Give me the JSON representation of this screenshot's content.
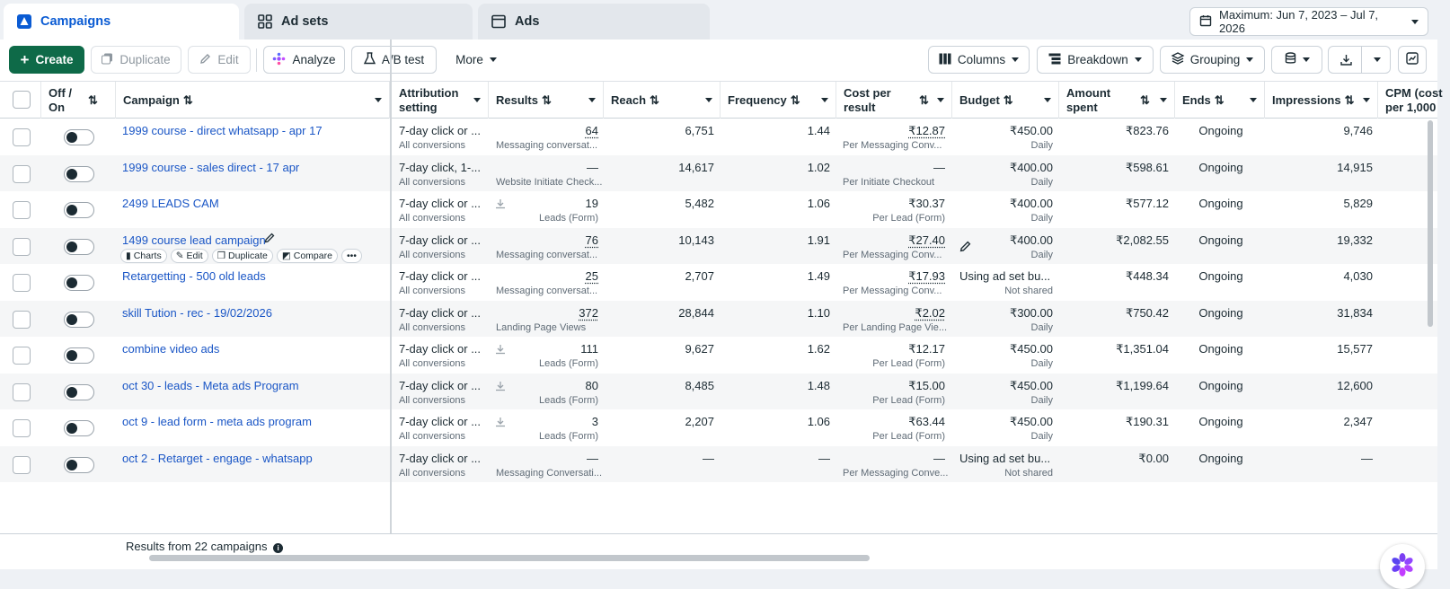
{
  "tabs": [
    {
      "label": "Campaigns",
      "icon": "campaign-flag-icon"
    },
    {
      "label": "Ad sets",
      "icon": "grid-icon"
    },
    {
      "label": "Ads",
      "icon": "browser-window-icon"
    }
  ],
  "date_range": {
    "label": "Maximum: Jun 7, 2023 – Jul 7, 2026",
    "icon": "calendar-icon"
  },
  "toolbar": {
    "create": "Create",
    "duplicate": "Duplicate",
    "edit": "Edit",
    "analyze": "Analyze",
    "ab_test": "A/B test",
    "more": "More",
    "columns": "Columns",
    "breakdown": "Breakdown",
    "grouping": "Grouping"
  },
  "columns": {
    "off_on": "Off / On",
    "campaign": "Campaign",
    "attribution": "Attribution setting",
    "results": "Results",
    "reach": "Reach",
    "frequency": "Frequency",
    "cost_per_result": "Cost per result",
    "budget": "Budget",
    "amount_spent": "Amount spent",
    "ends": "Ends",
    "impressions": "Impressions",
    "cpm": "CPM (cost per 1,000"
  },
  "hover_actions": {
    "charts": "Charts",
    "edit": "Edit",
    "duplicate": "Duplicate",
    "compare": "Compare",
    "more": "•••"
  },
  "rows": [
    {
      "campaign": "1999 course - direct whatsapp - apr 17",
      "attribution": "7-day click or ...",
      "attribution_sub": "All conversions",
      "results": "64",
      "results_sub": "Messaging conversat...",
      "reach": "6,751",
      "frequency": "1.44",
      "cpr": "₹12.87",
      "cpr_sub": "Per Messaging Conv...",
      "budget": "₹450.00",
      "budget_sub": "Daily",
      "spent": "₹823.76",
      "ends": "Ongoing",
      "impressions": "9,746"
    },
    {
      "campaign": "1999 course - sales direct - 17 apr",
      "attribution": "7-day click, 1-...",
      "attribution_sub": "All conversions",
      "results": "—",
      "results_sub": "Website Initiate Check...",
      "reach": "14,617",
      "frequency": "1.02",
      "cpr": "—",
      "cpr_sub": "Per Initiate Checkout",
      "budget": "₹400.00",
      "budget_sub": "Daily",
      "spent": "₹598.61",
      "ends": "Ongoing",
      "impressions": "14,915"
    },
    {
      "campaign": "2499 LEADS CAM",
      "attribution": "7-day click or ...",
      "attribution_sub": "All conversions",
      "results": "19",
      "results_sub": "Leads (Form)",
      "reach": "5,482",
      "frequency": "1.06",
      "cpr": "₹30.37",
      "cpr_sub": "Per Lead (Form)",
      "budget": "₹400.00",
      "budget_sub": "Daily",
      "spent": "₹577.12",
      "ends": "Ongoing",
      "impressions": "5,829"
    },
    {
      "campaign": "1499 course lead campaign",
      "attribution": "7-day click or ...",
      "attribution_sub": "All conversions",
      "results": "76",
      "results_sub": "Messaging conversat...",
      "reach": "10,143",
      "frequency": "1.91",
      "cpr": "₹27.40",
      "cpr_sub": "Per Messaging Conv...",
      "budget": "₹400.00",
      "budget_sub": "Daily",
      "spent": "₹2,082.55",
      "ends": "Ongoing",
      "impressions": "19,332"
    },
    {
      "campaign": "Retargetting - 500 old leads",
      "attribution": "7-day click or ...",
      "attribution_sub": "All conversions",
      "results": "25",
      "results_sub": "Messaging conversat...",
      "reach": "2,707",
      "frequency": "1.49",
      "cpr": "₹17.93",
      "cpr_sub": "Per Messaging Conv...",
      "budget": "Using ad set bu...",
      "budget_sub": "Not shared",
      "spent": "₹448.34",
      "ends": "Ongoing",
      "impressions": "4,030"
    },
    {
      "campaign": "skill Tution - rec - 19/02/2026",
      "attribution": "7-day click or ...",
      "attribution_sub": "All conversions",
      "results": "372",
      "results_sub": "Landing Page Views",
      "reach": "28,844",
      "frequency": "1.10",
      "cpr": "₹2.02",
      "cpr_sub": "Per Landing Page Vie...",
      "budget": "₹300.00",
      "budget_sub": "Daily",
      "spent": "₹750.42",
      "ends": "Ongoing",
      "impressions": "31,834"
    },
    {
      "campaign": "combine video ads",
      "attribution": "7-day click or ...",
      "attribution_sub": "All conversions",
      "results": "111",
      "results_sub": "Leads (Form)",
      "reach": "9,627",
      "frequency": "1.62",
      "cpr": "₹12.17",
      "cpr_sub": "Per Lead (Form)",
      "budget": "₹450.00",
      "budget_sub": "Daily",
      "spent": "₹1,351.04",
      "ends": "Ongoing",
      "impressions": "15,577"
    },
    {
      "campaign": "oct 30 - leads - Meta ads Program",
      "attribution": "7-day click or ...",
      "attribution_sub": "All conversions",
      "results": "80",
      "results_sub": "Leads (Form)",
      "reach": "8,485",
      "frequency": "1.48",
      "cpr": "₹15.00",
      "cpr_sub": "Per Lead (Form)",
      "budget": "₹450.00",
      "budget_sub": "Daily",
      "spent": "₹1,199.64",
      "ends": "Ongoing",
      "impressions": "12,600"
    },
    {
      "campaign": "oct 9 - lead form - meta ads program",
      "attribution": "7-day click or ...",
      "attribution_sub": "All conversions",
      "results": "3",
      "results_sub": "Leads (Form)",
      "reach": "2,207",
      "frequency": "1.06",
      "cpr": "₹63.44",
      "cpr_sub": "Per Lead (Form)",
      "budget": "₹450.00",
      "budget_sub": "Daily",
      "spent": "₹190.31",
      "ends": "Ongoing",
      "impressions": "2,347"
    },
    {
      "campaign": "oct 2 - Retarget - engage - whatsapp",
      "attribution": "7-day click or ...",
      "attribution_sub": "All conversions",
      "results": "—",
      "results_sub": "Messaging Conversati...",
      "reach": "—",
      "frequency": "—",
      "cpr": "—",
      "cpr_sub": "Per Messaging Conve...",
      "budget": "Using ad set bu...",
      "budget_sub": "Not shared",
      "spent": "₹0.00",
      "ends": "Ongoing",
      "impressions": "—"
    }
  ],
  "footer": {
    "summary": "Results from 22 campaigns"
  },
  "colors": {
    "accent_blue": "#0a5bd3",
    "link_blue": "#1a56c6",
    "create_green": "#0e6a48"
  }
}
